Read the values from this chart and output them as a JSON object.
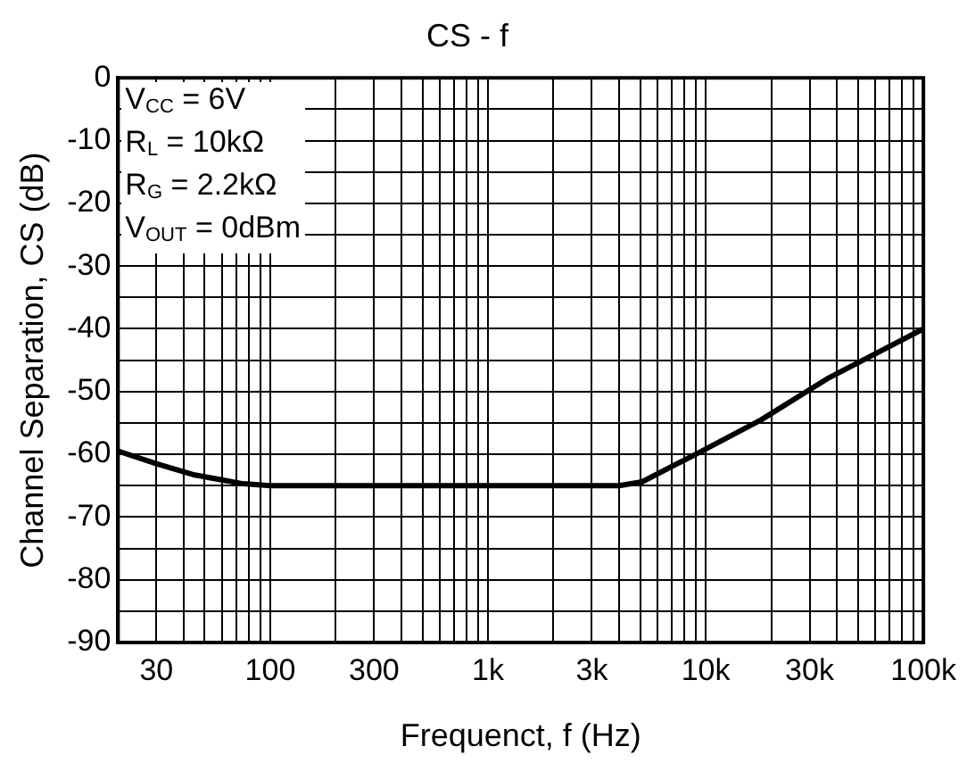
{
  "chart_data": {
    "type": "line",
    "title": "CS - f",
    "xlabel": "Frequenct, f (Hz)",
    "ylabel": "Channel Separation, CS (dB)",
    "annotations": [
      "V$_{CC}$ = 6V",
      "R$_{L}$ = 10kΩ",
      "R$_{G}$ = 2.2kΩ",
      "V$_{OUT}$ = 0dBm"
    ],
    "log": "x",
    "grid": true,
    "legend": false,
    "marker": "none",
    "line_style": "solid",
    "xlim": [
      20,
      100000
    ],
    "ylim": [
      -90,
      0
    ],
    "xticks": [
      {
        "value": 20,
        "label": null
      },
      30,
      {
        "value": 40,
        "label": null
      },
      {
        "value": 50,
        "label": null
      },
      {
        "value": 60,
        "label": null
      },
      {
        "value": 70,
        "label": null
      },
      {
        "value": 80,
        "label": null
      },
      {
        "value": 90,
        "label": null
      },
      100,
      {
        "value": 200,
        "label": null
      },
      300,
      {
        "value": 400,
        "label": null
      },
      {
        "value": 500,
        "label": null
      },
      {
        "value": 600,
        "label": null
      },
      {
        "value": 700,
        "label": null
      },
      {
        "value": 800,
        "label": null
      },
      {
        "value": 900,
        "label": null
      },
      {
        "value": 1000,
        "label": "1k"
      },
      {
        "value": 2000,
        "label": null
      },
      {
        "value": 3000,
        "label": "3k"
      },
      {
        "value": 4000,
        "label": null
      },
      {
        "value": 5000,
        "label": null
      },
      {
        "value": 6000,
        "label": null
      },
      {
        "value": 7000,
        "label": null
      },
      {
        "value": 8000,
        "label": null
      },
      {
        "value": 9000,
        "label": null
      },
      {
        "value": 10000,
        "label": "10k"
      },
      {
        "value": 20000,
        "label": null
      },
      {
        "value": 30000,
        "label": "30k"
      },
      {
        "value": 40000,
        "label": null
      },
      {
        "value": 50000,
        "label": null
      },
      {
        "value": 60000,
        "label": null
      },
      {
        "value": 70000,
        "label": null
      },
      {
        "value": 80000,
        "label": null
      },
      {
        "value": 90000,
        "label": null
      },
      {
        "value": 100000,
        "label": "100k"
      }
    ],
    "yticks": [
      0,
      {
        "value": -5,
        "label": null
      },
      -10,
      {
        "value": -15,
        "label": null
      },
      -20,
      {
        "value": -25,
        "label": null
      },
      -30,
      {
        "value": -35,
        "label": null
      },
      -40,
      {
        "value": -45,
        "label": null
      },
      -50,
      {
        "value": -55,
        "label": null
      },
      -60,
      {
        "value": -65,
        "label": null
      },
      -70,
      {
        "value": -75,
        "label": null
      },
      -80,
      {
        "value": -85,
        "label": null
      },
      -90
    ],
    "x": [
      20,
      30,
      45,
      75,
      100,
      300,
      1000,
      3000,
      4000,
      5100,
      9000,
      18000,
      36000,
      100000
    ],
    "series": [
      {
        "color": "#000000",
        "values": [
          -59.5,
          -61.5,
          -63.3,
          -64.7,
          -65,
          -65,
          -65,
          -65,
          -65,
          -64.4,
          -60,
          -54.5,
          -48,
          -40
        ]
      }
    ]
  }
}
